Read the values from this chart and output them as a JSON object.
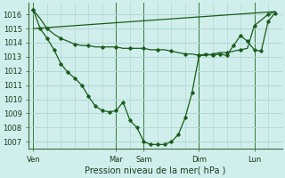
{
  "title": "Pression niveau de la mer( hPa )",
  "bg_color": "#d0eeec",
  "grid_color": "#b0d8d4",
  "line_color": "#1a5c1a",
  "x_tick_labels": [
    "Ven",
    "Mar",
    "Sam",
    "Dim",
    "Lun"
  ],
  "x_tick_pos": [
    0,
    36,
    48,
    72,
    96
  ],
  "xlim": [
    -2,
    108
  ],
  "ylim": [
    1006.5,
    1016.8
  ],
  "yticks": [
    1007,
    1008,
    1009,
    1010,
    1011,
    1012,
    1013,
    1014,
    1015,
    1016
  ],
  "line1_x": [
    0,
    3,
    6,
    9,
    12,
    15,
    18,
    21,
    24,
    27,
    30,
    33,
    36,
    39,
    42,
    45,
    48,
    51,
    54,
    57,
    60,
    63,
    66,
    69,
    72,
    75,
    78,
    81,
    84,
    87,
    90,
    93,
    96,
    99,
    102,
    105
  ],
  "line1_y": [
    1016.3,
    1015.7,
    1015.0,
    1014.6,
    1014.3,
    1014.1,
    1013.9,
    1013.8,
    1013.8,
    1013.7,
    1013.7,
    1013.7,
    1013.7,
    1013.6,
    1013.6,
    1013.6,
    1013.6,
    1013.5,
    1013.5,
    1013.5,
    1013.4,
    1013.3,
    1013.2,
    1013.2,
    1013.1,
    1013.1,
    1013.2,
    1013.3,
    1013.3,
    1013.4,
    1013.5,
    1013.6,
    1015.2,
    1015.6,
    1016.0,
    1016.2
  ],
  "line2_x": [
    0,
    3,
    6,
    9,
    12,
    15,
    18,
    21,
    24,
    27,
    30,
    33,
    36,
    39,
    42,
    45,
    48,
    51,
    54,
    57,
    60,
    63,
    66,
    69,
    72,
    75,
    78,
    81,
    84,
    87,
    90,
    93,
    96,
    99,
    102,
    105
  ],
  "line2_y": [
    1016.3,
    1015.0,
    1014.3,
    1013.5,
    1012.5,
    1011.9,
    1011.5,
    1011.0,
    1010.2,
    1009.5,
    1009.2,
    1009.1,
    1009.2,
    1009.8,
    1008.5,
    1008.0,
    1007.0,
    1006.8,
    1006.8,
    1006.8,
    1007.0,
    1007.5,
    1008.7,
    1010.5,
    1013.1,
    1013.2,
    1013.1,
    1013.2,
    1013.1,
    1013.8,
    1014.5,
    1014.1,
    1013.5,
    1013.4,
    1015.5,
    1016.1
  ],
  "trend_x": [
    0,
    105
  ],
  "trend_y": [
    1015.0,
    1016.2
  ]
}
